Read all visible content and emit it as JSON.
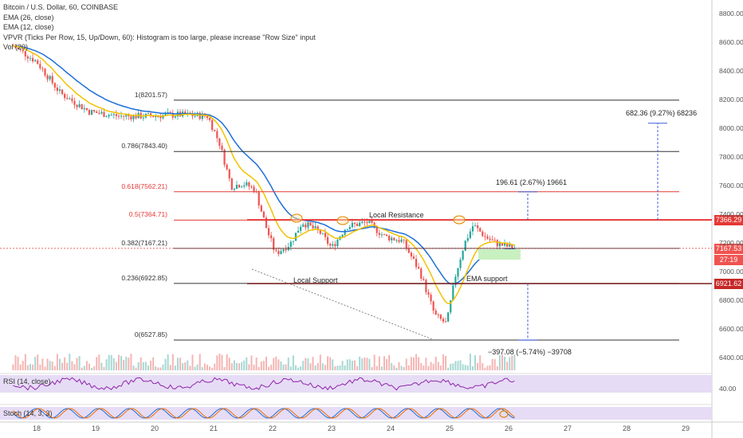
{
  "legend": {
    "title": "Bitcoin / U.S. Dollar, 60, COINBASE",
    "ema1": "EMA (26, close)",
    "ema2": "EMA (12, close)",
    "vpvr": "VPVR (Ticks Per Row, 15, Up/Down, 60): Histogram is too large, please increase \"Row Size\" input",
    "vol": "Vol (20)"
  },
  "indicators": {
    "rsi": "RSI (14, close)",
    "stoch": "Stoch (14, 3, 3)",
    "rsi_level": "40.00"
  },
  "colors": {
    "up": "#26a69a",
    "down": "#ef5350",
    "ema26": "#1e6fd9",
    "ema12": "#f2c200",
    "fib_red": "#e53935",
    "fib_black": "#333333",
    "support_green": "#c8f0c0",
    "rsi_band": "#e6dcf5"
  },
  "price_tags": {
    "resistance": "7366.29",
    "current": "7167.53",
    "countdown": "27:19",
    "support": "6921.62"
  },
  "annotations": {
    "local_resistance": "Local Resistance",
    "local_support": "Local Support",
    "ema_support": "EMA support",
    "measure_up1": "196.61 (2.67%) 19661",
    "measure_up2": "682.36 (9.27%) 68236",
    "measure_down": "−397.08 (−5.74%) −39708"
  },
  "chart_data": {
    "type": "candlestick",
    "title": "Bitcoin / U.S. Dollar, 60, COINBASE",
    "y_ticks": [
      "8800.00",
      "8600.00",
      "8400.00",
      "8200.00",
      "8000.00",
      "7800.00",
      "7600.00",
      "7400.00",
      "7200.00",
      "7000.00",
      "6800.00",
      "6600.00",
      "6400.00"
    ],
    "x_ticks": [
      "18",
      "19",
      "20",
      "21",
      "22",
      "23",
      "24",
      "25",
      "26",
      "27",
      "28",
      "29"
    ],
    "fib_levels": [
      {
        "label": "1(8201.57)",
        "value": 8201.57,
        "color": "black"
      },
      {
        "label": "0.786(7843.40)",
        "value": 7843.4,
        "color": "black"
      },
      {
        "label": "0.618(7562.21)",
        "value": 7562.21,
        "color": "red"
      },
      {
        "label": "0.5(7364.71)",
        "value": 7364.71,
        "color": "red"
      },
      {
        "label": "0.382(7167.21)",
        "value": 7167.21,
        "color": "black"
      },
      {
        "label": "0.236(6922.85)",
        "value": 6922.85,
        "color": "black"
      },
      {
        "label": "0(6527.85)",
        "value": 6527.85,
        "color": "black"
      }
    ],
    "close_anchors": [
      {
        "day": 17.6,
        "close": 8580
      },
      {
        "day": 18.0,
        "close": 8470
      },
      {
        "day": 18.4,
        "close": 8250
      },
      {
        "day": 18.9,
        "close": 8120
      },
      {
        "day": 19.4,
        "close": 8090
      },
      {
        "day": 19.9,
        "close": 8090
      },
      {
        "day": 20.4,
        "close": 8100
      },
      {
        "day": 20.9,
        "close": 8090
      },
      {
        "day": 21.1,
        "close": 7900
      },
      {
        "day": 21.3,
        "close": 7600
      },
      {
        "day": 21.5,
        "close": 7620
      },
      {
        "day": 21.7,
        "close": 7580
      },
      {
        "day": 21.9,
        "close": 7300
      },
      {
        "day": 22.05,
        "close": 7130
      },
      {
        "day": 22.3,
        "close": 7200
      },
      {
        "day": 22.5,
        "close": 7350
      },
      {
        "day": 22.8,
        "close": 7280
      },
      {
        "day": 23.0,
        "close": 7170
      },
      {
        "day": 23.25,
        "close": 7320
      },
      {
        "day": 23.6,
        "close": 7350
      },
      {
        "day": 23.9,
        "close": 7250
      },
      {
        "day": 24.2,
        "close": 7220
      },
      {
        "day": 24.5,
        "close": 7000
      },
      {
        "day": 24.75,
        "close": 6700
      },
      {
        "day": 24.95,
        "close": 6640
      },
      {
        "day": 25.1,
        "close": 6980
      },
      {
        "day": 25.25,
        "close": 7200
      },
      {
        "day": 25.4,
        "close": 7330
      },
      {
        "day": 25.6,
        "close": 7250
      },
      {
        "day": 25.8,
        "close": 7200
      },
      {
        "day": 26.1,
        "close": 7167.53
      }
    ]
  }
}
